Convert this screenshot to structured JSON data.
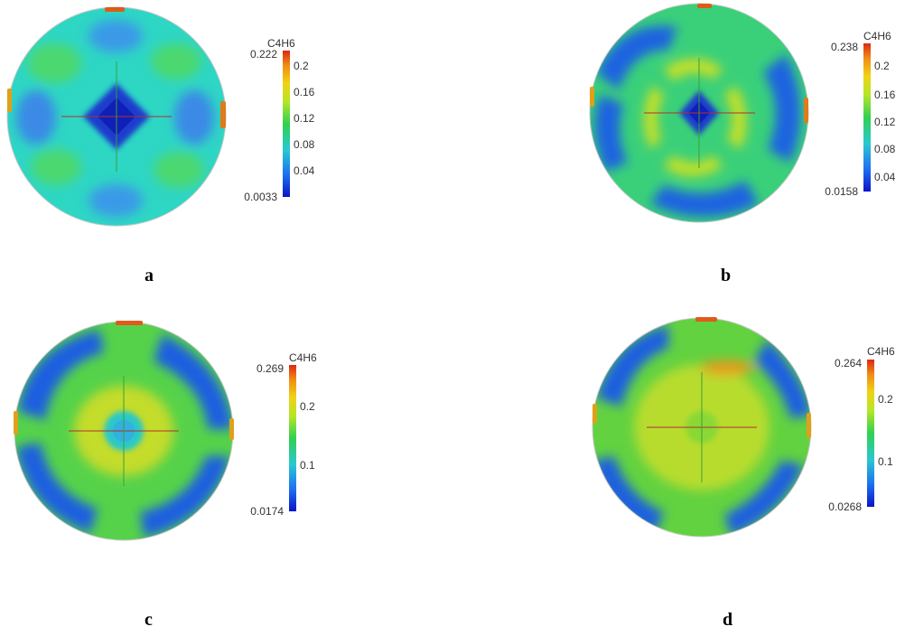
{
  "colormap": [
    "#0a14c8",
    "#1e6ef0",
    "#28c8d2",
    "#32d050",
    "#b4e628",
    "#f0d214",
    "#f08c14",
    "#dc2814"
  ],
  "panels": [
    {
      "label": "a",
      "colorbar": {
        "title": "C4H6",
        "max": "0.222",
        "min": "0.0033",
        "ticks": [
          "0.2",
          "0.16",
          "0.12",
          "0.08",
          "0.04"
        ]
      },
      "field": {
        "base": "#2ed6c4",
        "pattern": "cross"
      }
    },
    {
      "label": "b",
      "colorbar": {
        "title": "C4H6",
        "max": "0.238",
        "min": "0.0158",
        "ticks": [
          "0.2",
          "0.16",
          "0.12",
          "0.08",
          "0.04"
        ]
      },
      "field": {
        "base": "#3ad07a",
        "pattern": "swirl-small"
      }
    },
    {
      "label": "c",
      "colorbar": {
        "title": "C4H6",
        "max": "0.269",
        "min": "0.0174",
        "ticks": [
          "0.2",
          "0.1"
        ]
      },
      "field": {
        "base": "#56d24a",
        "pattern": "swirl-ring"
      }
    },
    {
      "label": "d",
      "colorbar": {
        "title": "C4H6",
        "max": "0.264",
        "min": "0.0268",
        "ticks": [
          "0.2",
          "0.1"
        ]
      },
      "field": {
        "base": "#62d240",
        "pattern": "swirl-full"
      }
    }
  ]
}
